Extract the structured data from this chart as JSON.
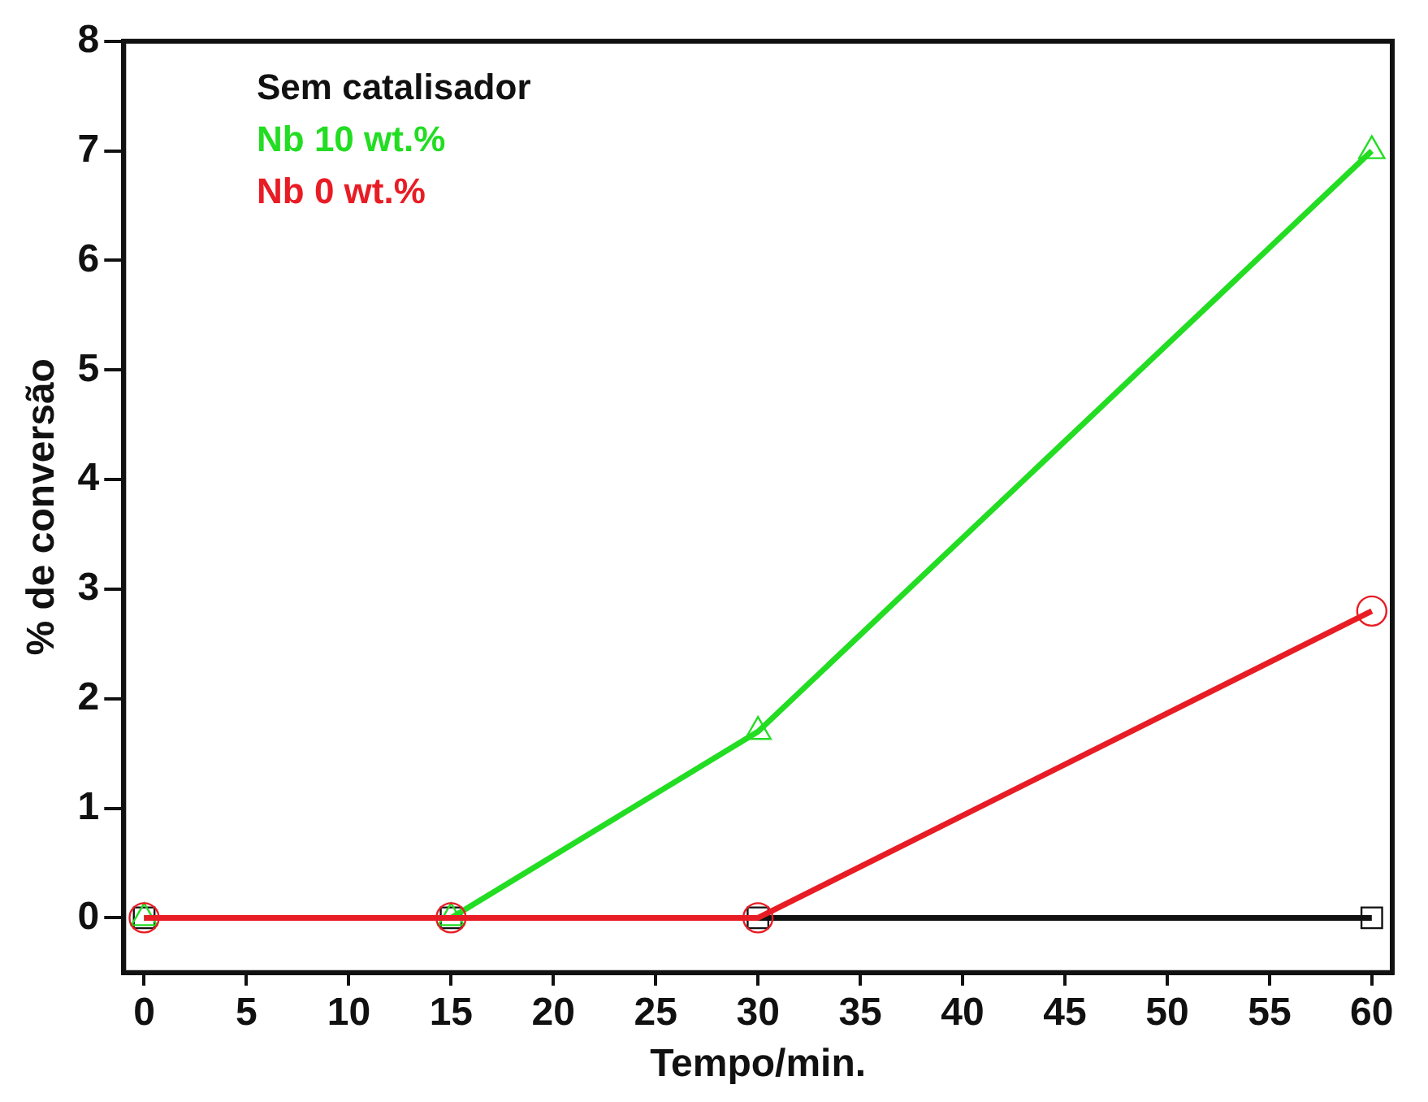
{
  "chart_data": {
    "type": "line",
    "xlabel": "Tempo/min.",
    "ylabel": "% de conversão",
    "x": [
      0,
      15,
      30,
      60
    ],
    "series": [
      {
        "name": "Sem catalisador",
        "color": "#111111",
        "marker": "square",
        "values": [
          0,
          0,
          0,
          0
        ]
      },
      {
        "name": "Nb 10 wt.%",
        "color": "#22dd22",
        "marker": "triangle",
        "values": [
          0,
          0,
          1.7,
          7.0
        ]
      },
      {
        "name": "Nb 0 wt.%",
        "color": "#e81c24",
        "marker": "circle",
        "values": [
          0,
          0,
          0,
          2.8
        ]
      }
    ],
    "xlim": [
      -1,
      61
    ],
    "xticks": [
      0,
      5,
      10,
      15,
      20,
      25,
      30,
      35,
      40,
      45,
      50,
      55,
      60
    ],
    "ylim": [
      -0.5,
      8
    ],
    "yticks": [
      0,
      1,
      2,
      3,
      4,
      5,
      6,
      7,
      8
    ],
    "grid": false,
    "legend": "top left"
  }
}
